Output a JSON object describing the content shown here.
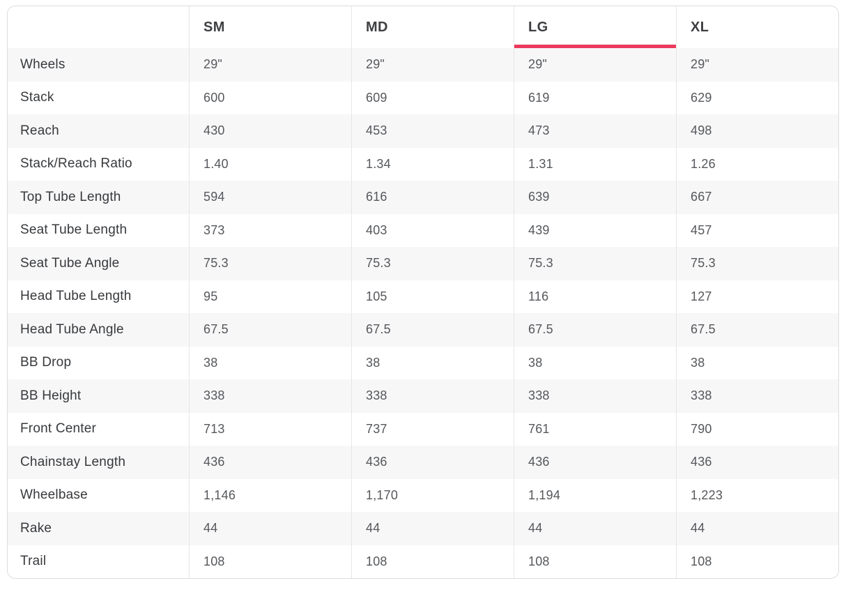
{
  "table": {
    "accent_color": "#ec3a5c",
    "columns": [
      {
        "label": "SM",
        "selected": false
      },
      {
        "label": "MD",
        "selected": false
      },
      {
        "label": "LG",
        "selected": true
      },
      {
        "label": "XL",
        "selected": false
      }
    ],
    "rows": [
      {
        "label": "Wheels",
        "values": [
          "29\"",
          "29\"",
          "29\"",
          "29\""
        ]
      },
      {
        "label": "Stack",
        "values": [
          "600",
          "609",
          "619",
          "629"
        ]
      },
      {
        "label": "Reach",
        "values": [
          "430",
          "453",
          "473",
          "498"
        ]
      },
      {
        "label": "Stack/Reach Ratio",
        "values": [
          "1.40",
          "1.34",
          "1.31",
          "1.26"
        ]
      },
      {
        "label": "Top Tube Length",
        "values": [
          "594",
          "616",
          "639",
          "667"
        ]
      },
      {
        "label": "Seat Tube Length",
        "values": [
          "373",
          "403",
          "439",
          "457"
        ]
      },
      {
        "label": "Seat Tube Angle",
        "values": [
          "75.3",
          "75.3",
          "75.3",
          "75.3"
        ]
      },
      {
        "label": "Head Tube Length",
        "values": [
          "95",
          "105",
          "116",
          "127"
        ]
      },
      {
        "label": "Head Tube Angle",
        "values": [
          "67.5",
          "67.5",
          "67.5",
          "67.5"
        ]
      },
      {
        "label": "BB Drop",
        "values": [
          "38",
          "38",
          "38",
          "38"
        ]
      },
      {
        "label": "BB Height",
        "values": [
          "338",
          "338",
          "338",
          "338"
        ]
      },
      {
        "label": "Front Center",
        "values": [
          "713",
          "737",
          "761",
          "790"
        ]
      },
      {
        "label": "Chainstay Length",
        "values": [
          "436",
          "436",
          "436",
          "436"
        ]
      },
      {
        "label": "Wheelbase",
        "values": [
          "1,146",
          "1,170",
          "1,194",
          "1,223"
        ]
      },
      {
        "label": "Rake",
        "values": [
          "44",
          "44",
          "44",
          "44"
        ]
      },
      {
        "label": "Trail",
        "values": [
          "108",
          "108",
          "108",
          "108"
        ]
      }
    ]
  }
}
